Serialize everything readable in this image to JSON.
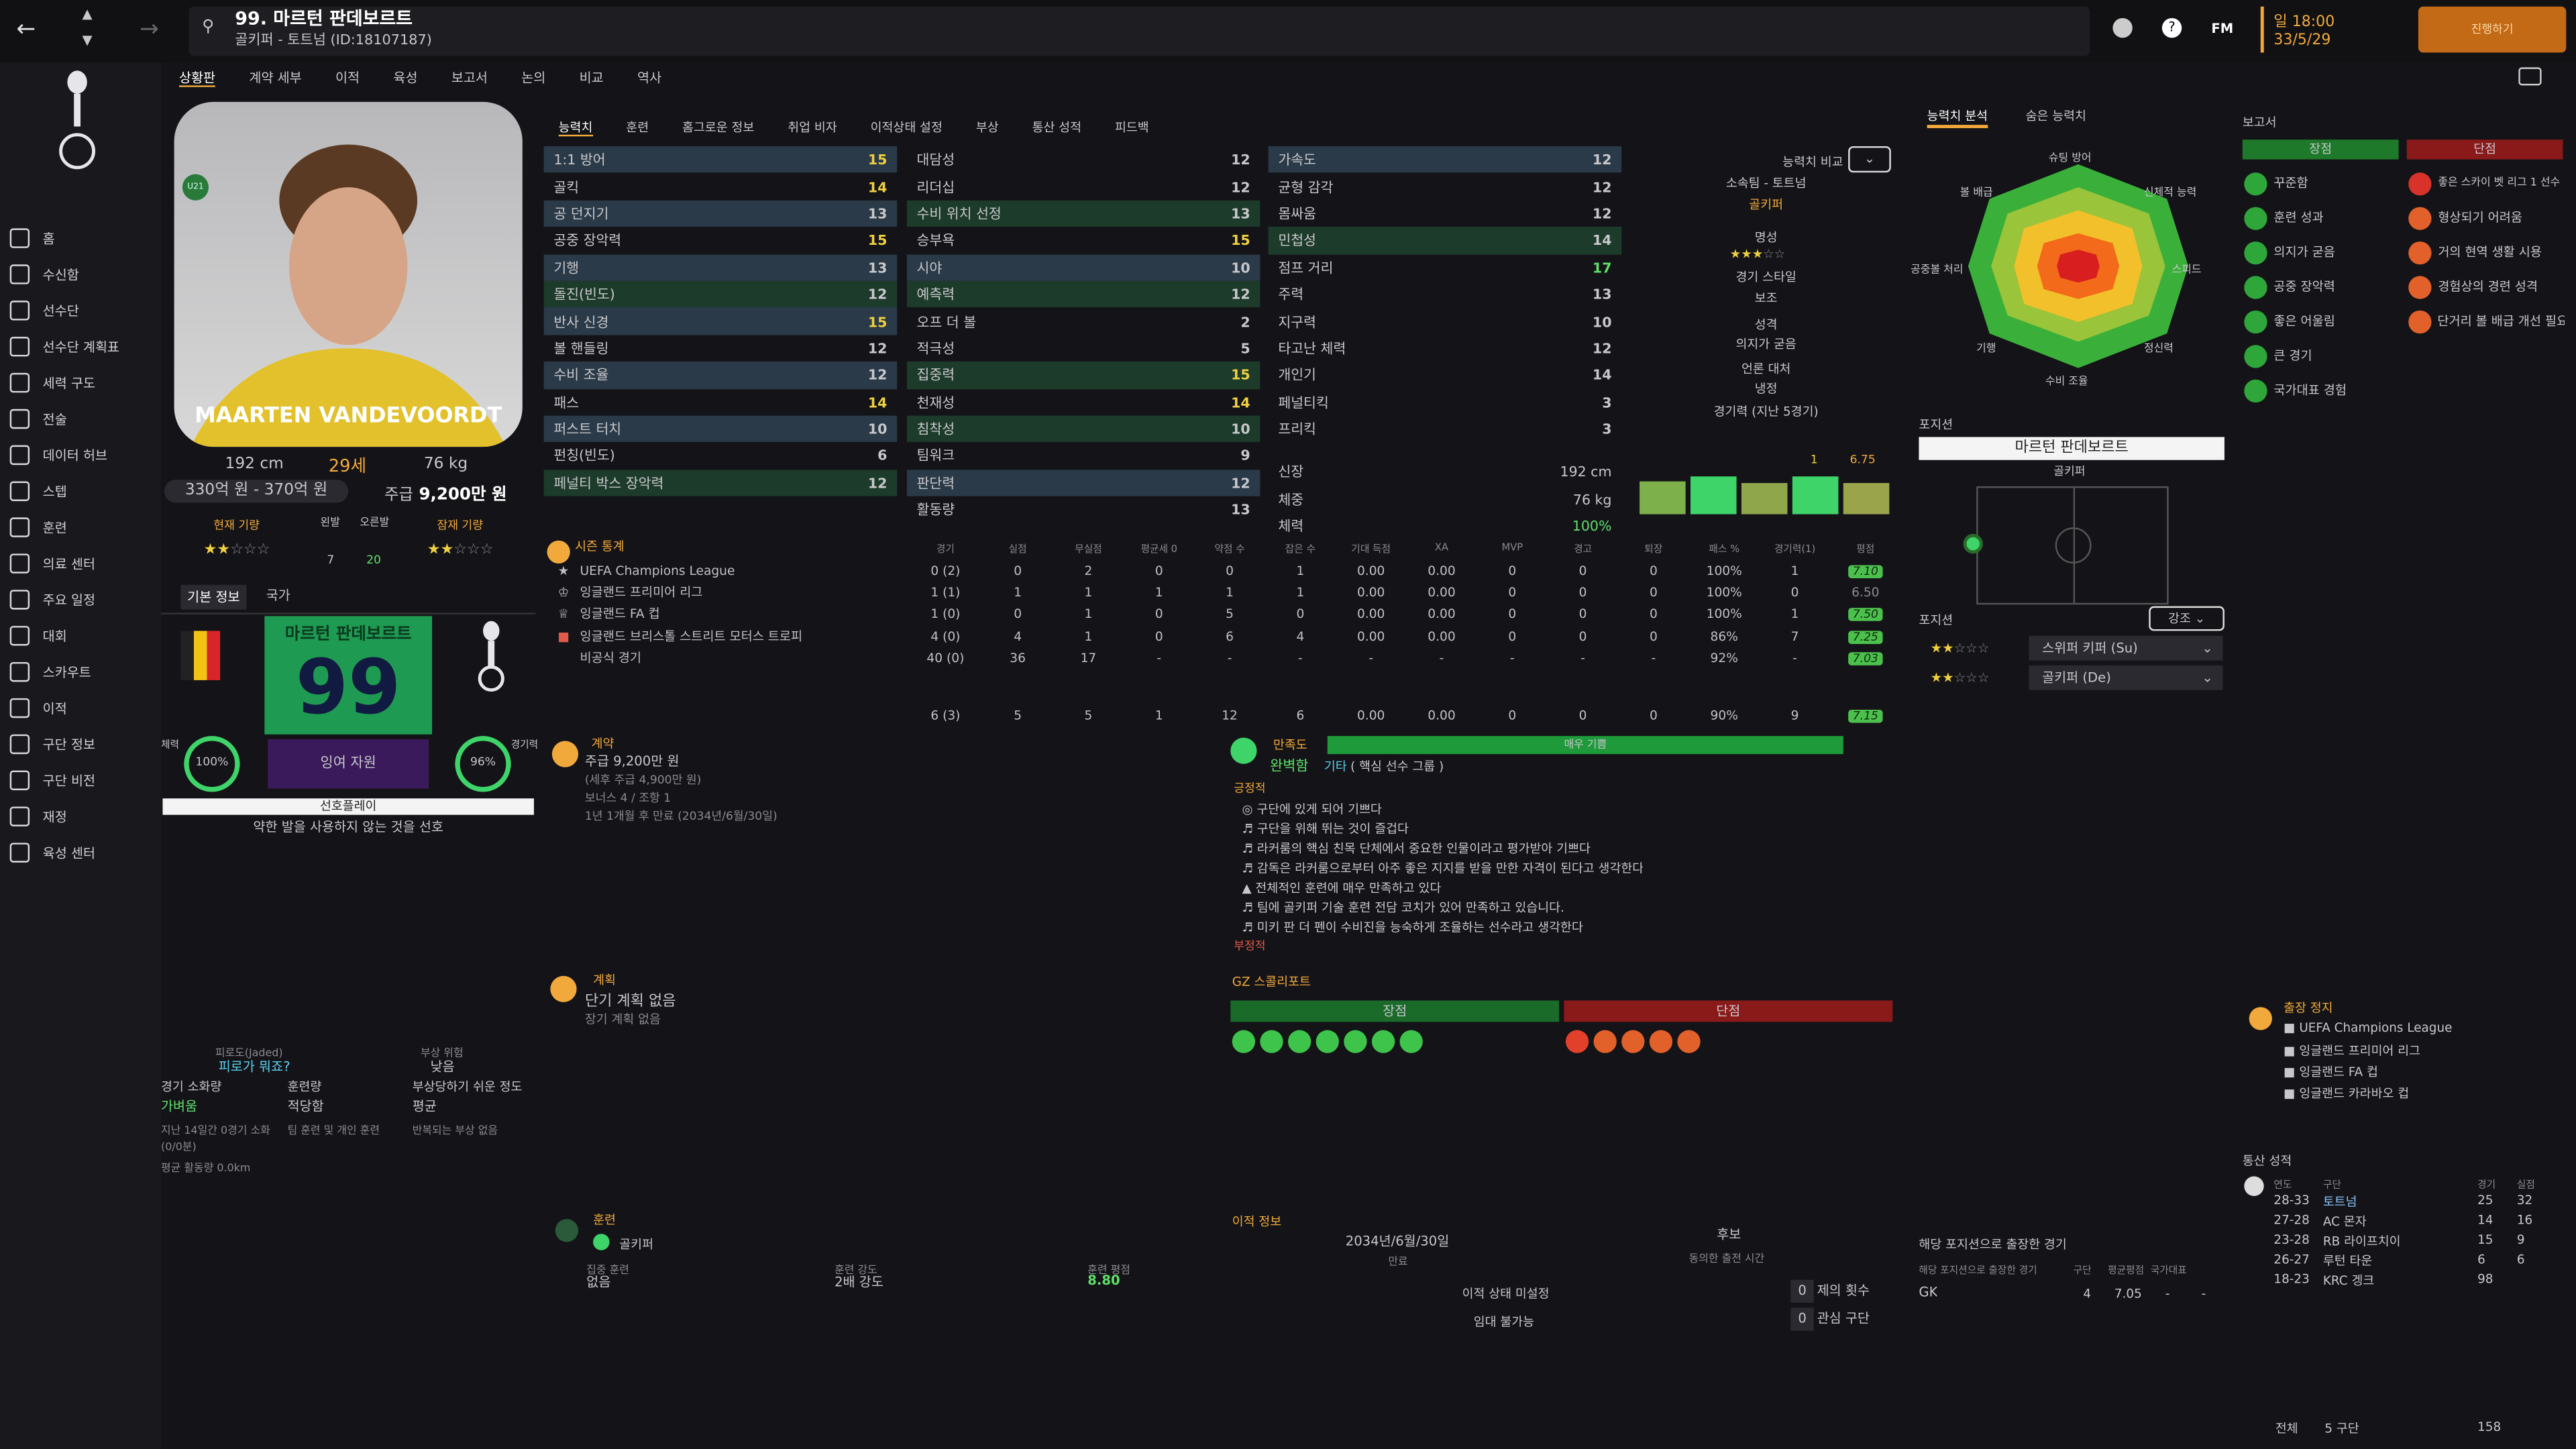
{
  "header": {
    "title": "99. 마르턴 판데보르트",
    "subtitle": "골키퍼 - 토트넘 (ID:18107187)",
    "time": "일 18:00",
    "date": "33/5/29",
    "continue": "진행하기",
    "fm": "FM"
  },
  "nav": [
    "홈",
    "수신함",
    "선수단",
    "선수단 계획표",
    "세력 구도",
    "전술",
    "데이터 허브",
    "스텝",
    "훈련",
    "의료 센터",
    "주요 일정",
    "대회",
    "스카우트",
    "이적",
    "구단 정보",
    "구단 비전",
    "재정",
    "육성 센터"
  ],
  "subtabs": [
    "상황판",
    "계약 세부",
    "이적",
    "육성",
    "보고서",
    "논의",
    "비교",
    "역사"
  ],
  "player": {
    "card_name": "MAARTEN VANDEVOORDT",
    "age_badge": "U21",
    "height": "192 cm",
    "age": "29세",
    "weight": "76 kg",
    "value": "330억 원 - 370억 원",
    "wage_label": "주급",
    "wage": "9,200만 원",
    "current_ability": "현재 기량",
    "potential": "잠재 기량",
    "left_foot": "왼발",
    "right_foot": "오른발",
    "left_val": "7",
    "right_val": "20",
    "tab1": "기본 정보",
    "tab2": "국가",
    "nameplate": "마르턴 판데보르트",
    "number": "99",
    "fitness_label": "체력",
    "fitness": "100%",
    "sharp_label": "경기력",
    "sharpness": "96%",
    "status": "잉여 자원",
    "playstyle_title": "선호플레이",
    "playstyle": "약한 발을 사용하지 않는 것을 선호"
  },
  "fatigue": {
    "l1": "피로도(Jaded)",
    "v1": "피로가 뭐죠?",
    "l2": "부상 위험",
    "v2": "낮음",
    "l3": "경기 소화량",
    "v3": "가벼움",
    "l4": "훈련량",
    "v4": "적당함",
    "l5": "부상당하기 쉬운 정도",
    "v5": "평균",
    "n1": "지난 14일간 0경기 소화(0/0분)",
    "n2": "팀 훈련 및 개인 훈련",
    "n3": "반복되는 부상 없음",
    "n4": "평균 활동량 0.0km"
  },
  "tabs": [
    "능력치",
    "훈련",
    "홈그로운 정보",
    "취업 비자",
    "이적상태 설정",
    "부상",
    "통산 성적",
    "피드백"
  ],
  "attrs1": [
    [
      "1:1 방어",
      "15"
    ],
    [
      "골킥",
      "14"
    ],
    [
      "공 던지기",
      "13"
    ],
    [
      "공중 장악력",
      "15"
    ],
    [
      "기행",
      "13"
    ],
    [
      "돌진(빈도)",
      "12"
    ],
    [
      "반사 신경",
      "15"
    ],
    [
      "볼 핸들링",
      "12"
    ],
    [
      "수비 조율",
      "12"
    ],
    [
      "패스",
      "14"
    ],
    [
      "퍼스트 터치",
      "10"
    ],
    [
      "펀칭(빈도)",
      "6"
    ],
    [
      "페널티 박스 장악력",
      "12"
    ]
  ],
  "attrs2": [
    [
      "대담성",
      "12"
    ],
    [
      "리더십",
      "12"
    ],
    [
      "수비 위치 선정",
      "13"
    ],
    [
      "승부욕",
      "15"
    ],
    [
      "시야",
      "10"
    ],
    [
      "예측력",
      "12"
    ],
    [
      "오프 더 볼",
      "2"
    ],
    [
      "적극성",
      "5"
    ],
    [
      "집중력",
      "15"
    ],
    [
      "천재성",
      "14"
    ],
    [
      "침착성",
      "10"
    ],
    [
      "팀워크",
      "9"
    ],
    [
      "판단력",
      "12"
    ],
    [
      "활동량",
      "13"
    ]
  ],
  "attrs3": [
    [
      "가속도",
      "12"
    ],
    [
      "균형 감각",
      "12"
    ],
    [
      "몸싸움",
      "12"
    ],
    [
      "민첩성",
      "14"
    ],
    [
      "점프 거리",
      "17"
    ],
    [
      "주력",
      "13"
    ],
    [
      "지구력",
      "10"
    ],
    [
      "타고난 체력",
      "12"
    ],
    [
      "개인기",
      "14"
    ],
    [
      "페널티킥",
      "3"
    ],
    [
      "프리킥",
      "3"
    ]
  ],
  "phys": {
    "h_l": "신장",
    "h": "192 cm",
    "w_l": "체중",
    "w": "76 kg",
    "c_l": "체력",
    "c": "100%"
  },
  "compare": {
    "label": "능력치 비교",
    "club": "소속팀 - 토트넘",
    "pos": "골키퍼",
    "fame_l": "명성",
    "style_l": "경기 스타일",
    "style": "보조",
    "pers_l": "성격",
    "pers": "의지가 굳음",
    "media_l": "언론 대처",
    "media": "냉정",
    "form_l": "경기력 (지난 5경기)",
    "form_v": "6.75",
    "form_n": "1"
  },
  "radar": {
    "tab1": "능력치 분석",
    "tab2": "숨은 능력치",
    "labels": [
      "슈팅 방어",
      "신체적 능력",
      "스피드",
      "정신력",
      "수비 조율",
      "기행",
      "공중볼 처리",
      "볼 배급"
    ]
  },
  "position": {
    "title": "포지션",
    "name": "마르턴 판데보르트",
    "pos": "골키퍼",
    "role_title": "포지션",
    "emphasis": "강조",
    "role1": "스위퍼 키퍼 (Su)",
    "role2": "골키퍼 (De)"
  },
  "report": {
    "title": "보고서",
    "pros": "장점",
    "cons": "단점",
    "pro_items": [
      "꾸준함",
      "훈련 성과",
      "의지가 굳음",
      "공중 장악력",
      "좋은 어울림",
      "큰 경기",
      "국가대표 경험"
    ],
    "con_items": [
      "좋은 스카이 벳 리그 1 선수",
      "형상되기 어려움",
      "거의 현역 생활 시용",
      "경험상의 경련 성격",
      "단거리 볼 배급 개선 필요"
    ]
  },
  "season": {
    "title": "시즌 통계",
    "heads": [
      "경기",
      "실점",
      "무실점",
      "평균세 0",
      "약점 수",
      "잡은 수",
      "기대 득점",
      "XA",
      "MVP",
      "경고",
      "퇴장",
      "패스 %",
      "경기력(1)",
      "평점"
    ],
    "rows": [
      [
        "UEFA Champions League",
        "0 (2)",
        "0",
        "2",
        "0",
        "0",
        "1",
        "0.00",
        "0.00",
        "0",
        "0",
        "0",
        "100%",
        "1",
        "7.10"
      ],
      [
        "잉글랜드 프리미어 리그",
        "1 (1)",
        "1",
        "1",
        "1",
        "1",
        "1",
        "0.00",
        "0.00",
        "0",
        "0",
        "0",
        "100%",
        "0",
        "6.50"
      ],
      [
        "잉글랜드 FA 컵",
        "1 (0)",
        "0",
        "1",
        "0",
        "5",
        "0",
        "0.00",
        "0.00",
        "0",
        "0",
        "0",
        "100%",
        "1",
        "7.50"
      ],
      [
        "잉글랜드 브리스톨 스트리트 모터스 트로피",
        "4 (0)",
        "4",
        "1",
        "0",
        "6",
        "4",
        "0.00",
        "0.00",
        "0",
        "0",
        "0",
        "86%",
        "7",
        "7.25"
      ],
      [
        "비공식 경기",
        "40 (0)",
        "36",
        "17",
        "-",
        "-",
        "-",
        "-",
        "-",
        "-",
        "-",
        "-",
        "92%",
        "-",
        "7.03"
      ]
    ],
    "total": [
      "6 (3)",
      "5",
      "5",
      "1",
      "12",
      "6",
      "0.00",
      "0.00",
      "0",
      "0",
      "0",
      "90%",
      "9",
      "7.15"
    ]
  },
  "contract": {
    "title": "계약",
    "wage": "주급 9,200만 원",
    "sub": "(세후 주급 4,900만 원)",
    "bonus": "보너스 4 / 조항 1",
    "exp": "1년 1개월 후 만료 (2034년/6월/30일)"
  },
  "happy": {
    "title": "만족도",
    "bar": "매우 기쁨",
    "status": "완벽함",
    "role": "기타",
    "role2": "( 핵심 선수 그룹 )",
    "pos_l": "긍정적",
    "items": [
      "구단에 있게 되어 기쁘다",
      "구단을 위해 뛰는 것이 즐겁다",
      "라커룸의 핵심 친목 단체에서 중요한 인물이라고 평가받아 기쁘다",
      "감독은 라커룸으로부터 아주 좋은 지지를 받을 만한 자격이 된다고 생각한다",
      "전체적인 훈련에 매우 만족하고 있다",
      "팀에 골키퍼 기술 훈련 전담 코치가 있어 만족하고 있습니다.",
      "미키 판 더 펜이 수비진을 능숙하게 조율하는 선수라고 생각한다"
    ],
    "neg_l": "부정적"
  },
  "plan": {
    "title": "계획",
    "l1": "단기 계획 없음",
    "l2": "장기 계획 없음"
  },
  "gz": {
    "title": "GZ 스콜리포트",
    "pros": "장점",
    "cons": "단점"
  },
  "training": {
    "title": "훈련",
    "pos": "골키퍼",
    "l1": "집중 훈련",
    "v1": "없음",
    "l2": "훈련 강도",
    "v2": "2배 강도",
    "l3": "훈련 평점",
    "v3": "8.80"
  },
  "transfer": {
    "title": "이적 정보",
    "date": "2034년/6월/30일",
    "date_l": "만료",
    "minutes": "후보",
    "minutes_l": "동의한 출전 시간",
    "status": "이적 상태 미설정",
    "loan": "임대 불가능",
    "offers": "0",
    "offers_l": "제의 횟수",
    "interest": "0",
    "interest_l": "관심 구단"
  },
  "suspension": {
    "title": "출장 정지",
    "items": [
      "UEFA Champions League",
      "잉글랜드 프리미어 리그",
      "잉글랜드 FA 컵",
      "잉글랜드 카라바오 컵"
    ]
  },
  "career": {
    "title": "통산 성적",
    "h1": "연도",
    "h2": "구단",
    "h3": "경기",
    "h4": "실점",
    "rows": [
      [
        "28-33",
        "토트넘",
        "25",
        "32"
      ],
      [
        "27-28",
        "AC 몬자",
        "14",
        "16"
      ],
      [
        "23-28",
        "RB 라이프치이",
        "15",
        "9"
      ],
      [
        "26-27",
        "루턴 타운",
        "6",
        "6"
      ],
      [
        "18-23",
        "KRC 겡크",
        "98",
        ""
      ]
    ],
    "tot": "전체",
    "tot2": "5 구단",
    "tot3": "158"
  },
  "posexp": {
    "title": "해당 포지션으로 출장한 경기",
    "h": "해당 포지션으로 출장한 경기",
    "h2": "구단",
    "h3": "평균평점",
    "h4": "국가대표",
    "pos": "GK",
    "v1": "4",
    "v2": "7.05",
    "v3": "-",
    "v4": "-"
  }
}
